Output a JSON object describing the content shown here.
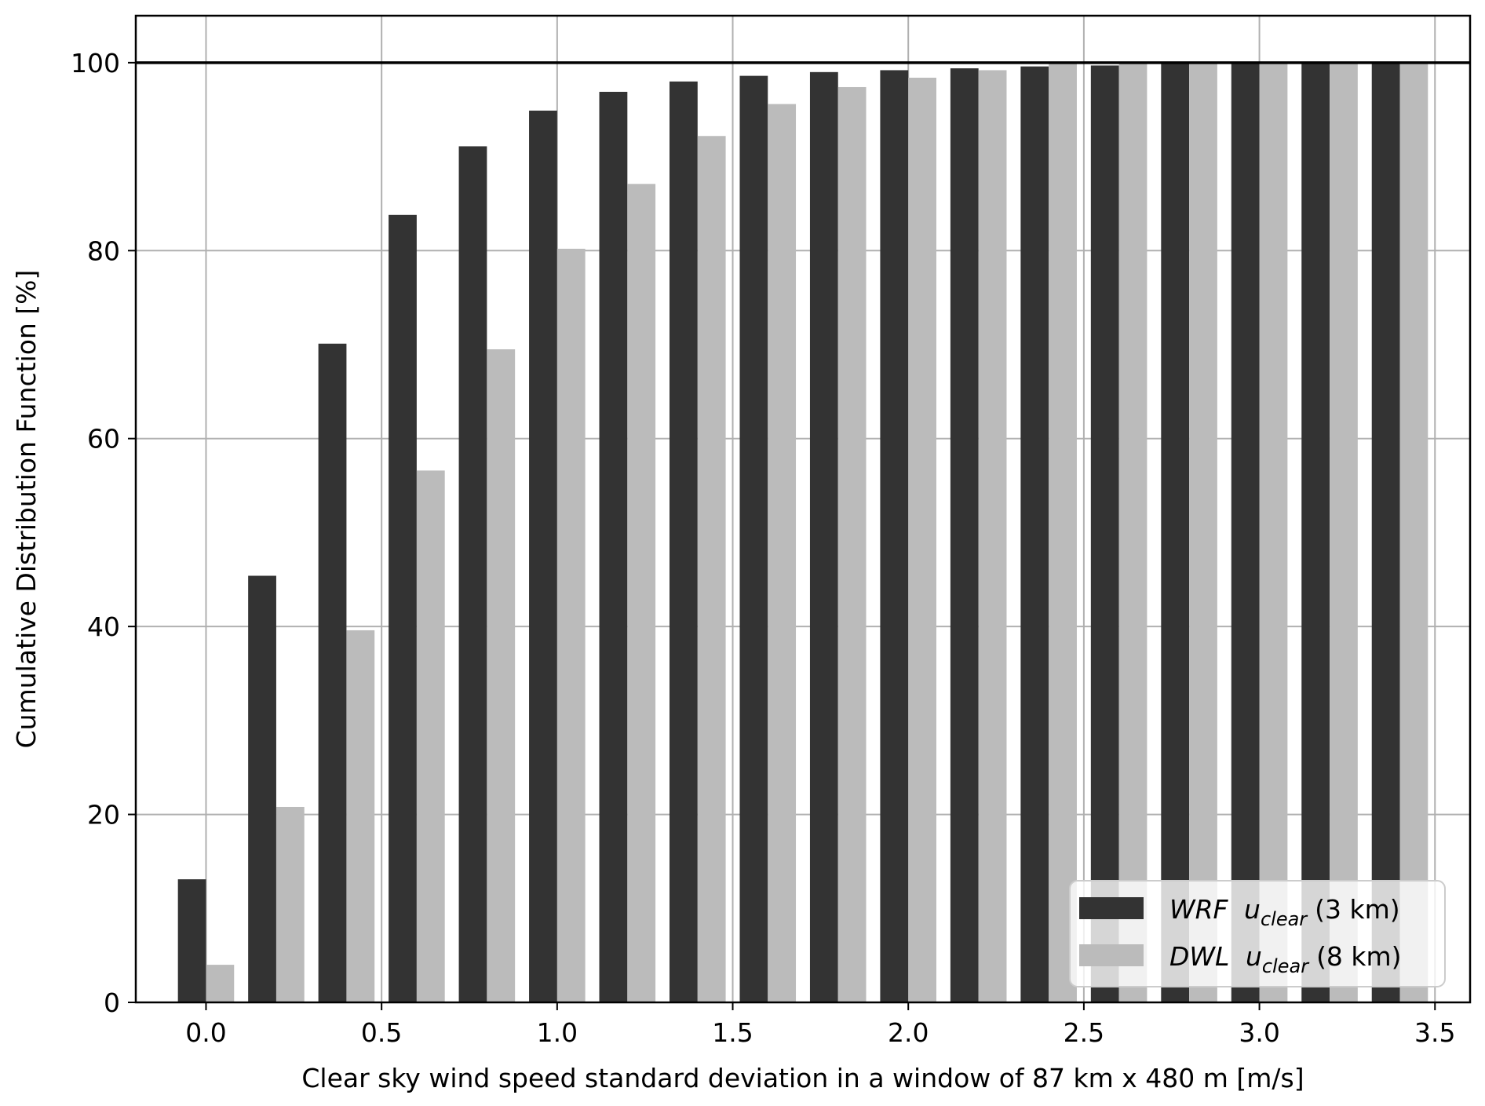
{
  "chart_data": {
    "type": "bar",
    "xlabel": "Clear sky wind speed standard deviation in a window of 87 km x 480 m [m/s]",
    "ylabel": "Cumulative Distribution Function [%]",
    "xlim": [
      -0.2,
      3.6
    ],
    "ylim": [
      0,
      105
    ],
    "xticks": [
      "0.0",
      "0.5",
      "1.0",
      "1.5",
      "2.0",
      "2.5",
      "3.0",
      "3.5"
    ],
    "yticks": [
      "0",
      "20",
      "40",
      "60",
      "80",
      "100"
    ],
    "grid": true,
    "reference_line_y": 100,
    "legend_position": "lower-right",
    "x": [
      0.0,
      0.2,
      0.4,
      0.6,
      0.8,
      1.0,
      1.2,
      1.4,
      1.6,
      1.8,
      2.0,
      2.2,
      2.4,
      2.6,
      2.8,
      3.0,
      3.2,
      3.4
    ],
    "series": [
      {
        "name_prefix": "WRF",
        "name_var": "u",
        "name_sub": "clear",
        "name_suffix": "(3 km)",
        "color": "#333333",
        "values": [
          13.1,
          45.4,
          70.1,
          83.8,
          91.1,
          94.9,
          96.9,
          98.0,
          98.6,
          99.0,
          99.2,
          99.4,
          99.6,
          99.7,
          100,
          100,
          100,
          100
        ]
      },
      {
        "name_prefix": "DWL",
        "name_var": "u",
        "name_sub": "clear",
        "name_suffix": "(8 km)",
        "color": "#bbbbbb",
        "values": [
          4.0,
          20.8,
          39.6,
          56.6,
          69.5,
          80.2,
          87.1,
          92.2,
          95.6,
          97.4,
          98.4,
          99.2,
          100,
          100,
          100,
          100,
          100,
          100
        ]
      }
    ]
  }
}
